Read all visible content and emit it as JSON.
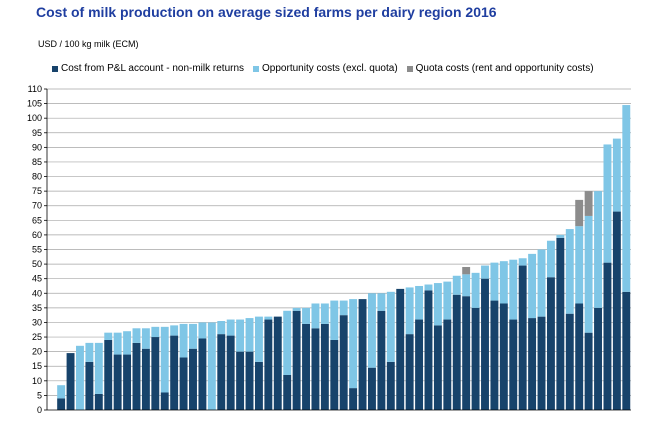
{
  "chart_data": {
    "type": "bar",
    "stacked": true,
    "title": "Cost of milk production on average sized farms per dairy region 2016",
    "ylabel": "USD / 100 kg milk (ECM)",
    "xlabel": "",
    "ylim": [
      0,
      110
    ],
    "ytick_step": 5,
    "yticks": [
      "0",
      "5",
      "10",
      "15",
      "20",
      "25",
      "30",
      "35",
      "40",
      "45",
      "50",
      "55",
      "60",
      "65",
      "70",
      "75",
      "80",
      "85",
      "90",
      "95",
      "100",
      "105",
      "110"
    ],
    "legend_position": "top",
    "grid": true,
    "series": [
      {
        "name": "Cost from P&L account - non-milk returns",
        "color": "#17436b",
        "values": [
          0,
          4,
          19.5,
          0,
          16.5,
          5.5,
          24,
          19,
          19,
          23,
          21,
          25,
          6,
          25.5,
          18,
          21,
          24.5,
          0,
          26,
          25.5,
          20,
          20,
          16.5,
          31,
          32,
          12,
          34,
          29.5,
          28,
          29.5,
          24,
          32.5,
          7.5,
          38,
          14.5,
          34,
          16.5,
          41.5,
          26,
          31,
          41,
          29,
          31,
          39.5,
          39,
          35,
          45,
          37.5,
          36.5,
          31,
          49.5,
          31.5,
          32,
          45.5,
          59,
          33,
          36.5,
          26.5,
          35,
          50.5,
          68,
          40.5
        ]
      },
      {
        "name": "Opportunity costs (excl. quota)",
        "color": "#7fc6e6",
        "values": [
          0,
          4.5,
          0,
          22,
          6.5,
          17.5,
          2.5,
          7.5,
          8,
          5,
          7,
          3.5,
          22.5,
          3.5,
          11.5,
          8.5,
          5.5,
          30,
          4.5,
          5.5,
          11,
          11.5,
          15.5,
          1,
          0,
          22,
          1,
          5.5,
          8.5,
          7,
          13.5,
          5,
          30.5,
          0,
          25.5,
          6,
          24,
          0,
          16,
          11.5,
          2,
          14.5,
          13,
          6.5,
          7.5,
          12,
          4.5,
          13,
          14.5,
          20.5,
          2.5,
          22,
          23,
          12.5,
          1,
          29,
          26.5,
          40,
          40,
          40.5,
          25,
          64
        ]
      },
      {
        "name": "Quota costs (rent and opportunity costs)",
        "color": "#8c8c8c",
        "values": [
          0,
          0,
          0,
          0,
          0,
          0,
          0,
          0,
          0,
          0,
          0,
          0,
          0,
          0,
          0,
          0,
          0,
          0,
          0,
          0,
          0,
          0,
          0,
          0,
          0,
          0,
          0,
          0,
          0,
          0,
          0,
          0,
          0,
          0,
          0,
          0,
          0,
          0,
          0,
          0,
          0,
          0,
          0,
          0,
          2.5,
          0,
          0,
          0,
          0,
          0,
          0,
          0,
          0,
          0,
          0,
          0,
          9,
          8.5,
          0,
          0,
          0,
          0
        ]
      }
    ]
  }
}
